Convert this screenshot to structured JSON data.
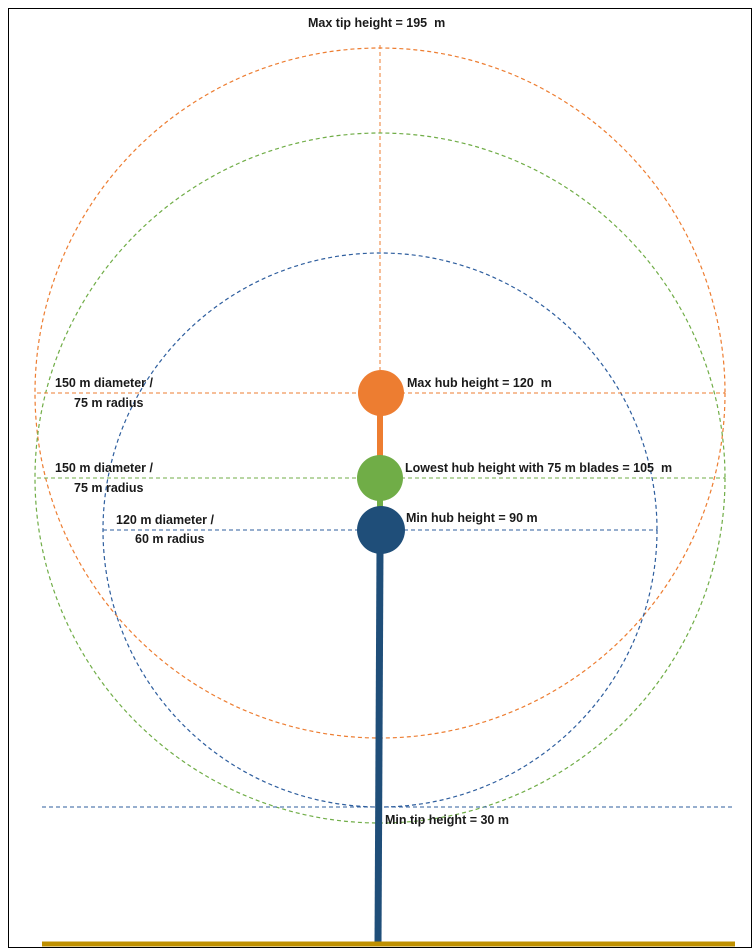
{
  "labels": {
    "max_tip": "Max tip height = 195  m",
    "max_hub": "Max hub height = 120  m",
    "lowest_hub": "Lowest hub height with 75 m blades = 105  m",
    "min_hub": "Min hub height = 90 m",
    "min_tip": "Min tip height = 30 m",
    "orange_diam_line1": "150 m diameter /",
    "orange_diam_line2": "75 m radius",
    "green_diam_line1": "150 m diameter /",
    "green_diam_line2": "75 m radius",
    "blue_diam_line1": "120 m diameter /",
    "blue_diam_line2": "60 m radius"
  },
  "colors": {
    "orange": "#ED7D31",
    "green": "#70AD47",
    "blue": "#1F4E79",
    "ground": "#BF9000"
  }
}
